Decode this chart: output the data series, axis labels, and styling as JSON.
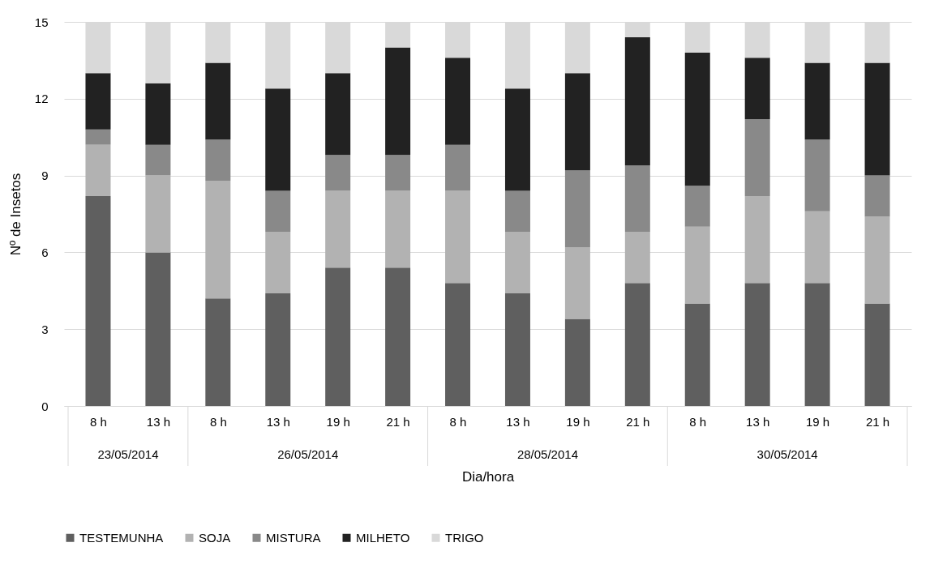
{
  "chart_data": {
    "type": "bar",
    "stacked": true,
    "xlabel": "Dia/hora",
    "ylabel": "Nº de Insetos",
    "categories": [
      "8 h",
      "13 h",
      "8 h",
      "13 h",
      "19 h",
      "21 h",
      "8 h",
      "13 h",
      "19 h",
      "21 h",
      "8 h",
      "13 h",
      "19 h",
      "21 h"
    ],
    "annotations": [
      "23/05/2014",
      "26/05/2014",
      "28/05/2014",
      "30/05/2014"
    ],
    "series": [
      {
        "name": "TESTEMUNHA",
        "color": "#5f5f5f",
        "values": [
          8.2,
          6.0,
          4.2,
          4.4,
          5.4,
          5.4,
          4.8,
          4.4,
          3.4,
          4.8,
          4.0,
          4.8,
          4.8,
          4.0
        ]
      },
      {
        "name": "SOJA",
        "color": "#b2b2b2",
        "values": [
          2.0,
          3.0,
          4.6,
          2.4,
          3.0,
          3.0,
          3.6,
          2.4,
          2.8,
          2.0,
          3.0,
          3.4,
          2.8,
          3.4
        ]
      },
      {
        "name": "MISTURA",
        "color": "#898989",
        "values": [
          0.6,
          1.2,
          1.6,
          1.6,
          1.4,
          1.4,
          1.8,
          1.6,
          3.0,
          2.6,
          1.6,
          3.0,
          2.8,
          1.6
        ]
      },
      {
        "name": "MILHETO",
        "color": "#222222",
        "values": [
          2.2,
          2.4,
          3.0,
          4.0,
          3.2,
          4.2,
          3.4,
          4.0,
          3.8,
          5.0,
          5.2,
          2.4,
          3.0,
          4.4
        ]
      },
      {
        "name": "TRIGO",
        "color": "#d9d9d9",
        "values": [
          2.0,
          2.4,
          1.6,
          2.6,
          2.0,
          1.0,
          1.4,
          2.6,
          2.0,
          0.6,
          1.2,
          1.4,
          1.6,
          1.6
        ]
      }
    ],
    "ylim": [
      0,
      15
    ],
    "yticks": [
      0,
      3,
      6,
      9,
      12,
      15
    ],
    "grid": "y",
    "legend": "bottom"
  }
}
